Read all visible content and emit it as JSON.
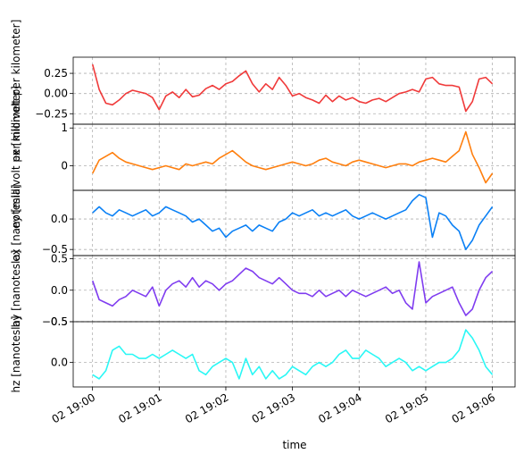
{
  "chart_data": {
    "type": "line",
    "xlabel": "time",
    "x_tick_labels": [
      "02 19:00",
      "02 19:01",
      "02 19:02",
      "02 19:03",
      "02 19:04",
      "02 19:05",
      "02 19:06"
    ],
    "x_range_minutes": [
      -0.29,
      6.34
    ],
    "grid": true,
    "panels": [
      {
        "ylabel": "ex [millivolt per kilometer]",
        "color": "#f03a3a",
        "ylim": [
          -0.38,
          0.45
        ],
        "yticks": [
          -0.25,
          0.0,
          0.25
        ],
        "ytick_labels": [
          "−0.25",
          "0.00",
          "0.25"
        ],
        "x": [
          0.0,
          0.1,
          0.2,
          0.3,
          0.4,
          0.5,
          0.6,
          0.7,
          0.8,
          0.9,
          1.0,
          1.1,
          1.2,
          1.3,
          1.4,
          1.5,
          1.6,
          1.7,
          1.8,
          1.9,
          2.0,
          2.1,
          2.2,
          2.3,
          2.4,
          2.5,
          2.6,
          2.7,
          2.8,
          2.9,
          3.0,
          3.1,
          3.2,
          3.3,
          3.4,
          3.5,
          3.6,
          3.7,
          3.8,
          3.9,
          4.0,
          4.1,
          4.2,
          4.3,
          4.4,
          4.5,
          4.6,
          4.7,
          4.8,
          4.9,
          5.0,
          5.1,
          5.2,
          5.3,
          5.4,
          5.5,
          5.6,
          5.7,
          5.8,
          5.9,
          6.0
        ],
        "values": [
          0.36,
          0.05,
          -0.12,
          -0.14,
          -0.08,
          0.0,
          0.04,
          0.02,
          0.0,
          -0.05,
          -0.2,
          -0.03,
          0.02,
          -0.05,
          0.05,
          -0.04,
          -0.02,
          0.06,
          0.1,
          0.05,
          0.12,
          0.15,
          0.22,
          0.28,
          0.12,
          0.02,
          0.12,
          0.05,
          0.2,
          0.1,
          -0.03,
          0.0,
          -0.05,
          -0.08,
          -0.12,
          -0.02,
          -0.1,
          -0.03,
          -0.08,
          -0.05,
          -0.1,
          -0.12,
          -0.08,
          -0.06,
          -0.1,
          -0.05,
          0.0,
          0.02,
          0.05,
          0.02,
          0.18,
          0.2,
          0.12,
          0.1,
          0.1,
          0.08,
          -0.22,
          -0.1,
          0.18,
          0.2,
          0.12
        ]
      },
      {
        "ylabel": "ey [millivolt per kilometer]",
        "color": "#ff7f0e",
        "ylim": [
          -0.65,
          1.1
        ],
        "yticks": [
          0,
          1
        ],
        "ytick_labels": [
          "0",
          "1"
        ],
        "x": [
          0.0,
          0.1,
          0.2,
          0.3,
          0.4,
          0.5,
          0.6,
          0.7,
          0.8,
          0.9,
          1.0,
          1.1,
          1.2,
          1.3,
          1.4,
          1.5,
          1.6,
          1.7,
          1.8,
          1.9,
          2.0,
          2.1,
          2.2,
          2.3,
          2.4,
          2.5,
          2.6,
          2.7,
          2.8,
          2.9,
          3.0,
          3.1,
          3.2,
          3.3,
          3.4,
          3.5,
          3.6,
          3.7,
          3.8,
          3.9,
          4.0,
          4.1,
          4.2,
          4.3,
          4.4,
          4.5,
          4.6,
          4.7,
          4.8,
          4.9,
          5.0,
          5.1,
          5.2,
          5.3,
          5.4,
          5.5,
          5.6,
          5.7,
          5.8,
          5.9,
          6.0
        ],
        "values": [
          -0.2,
          0.15,
          0.25,
          0.35,
          0.2,
          0.1,
          0.05,
          0.0,
          -0.05,
          -0.1,
          -0.05,
          0.0,
          -0.05,
          -0.1,
          0.05,
          0.0,
          0.05,
          0.1,
          0.05,
          0.2,
          0.3,
          0.4,
          0.25,
          0.1,
          0.0,
          -0.05,
          -0.1,
          -0.05,
          0.0,
          0.05,
          0.1,
          0.05,
          0.0,
          0.05,
          0.15,
          0.2,
          0.1,
          0.05,
          0.0,
          0.1,
          0.15,
          0.1,
          0.05,
          0.0,
          -0.05,
          0.0,
          0.05,
          0.05,
          0.0,
          0.1,
          0.15,
          0.2,
          0.15,
          0.1,
          0.25,
          0.4,
          0.9,
          0.3,
          -0.05,
          -0.45,
          -0.2
        ]
      },
      {
        "ylabel": "ex [nanotesla]",
        "color": "#0a80f5",
        "ylim": [
          -0.6,
          0.47
        ],
        "yticks": [
          -0.5,
          0.0
        ],
        "ytick_labels": [
          "−0.5",
          "0.0"
        ],
        "x": [
          0.0,
          0.1,
          0.2,
          0.3,
          0.4,
          0.5,
          0.6,
          0.7,
          0.8,
          0.9,
          1.0,
          1.1,
          1.2,
          1.3,
          1.4,
          1.5,
          1.6,
          1.7,
          1.8,
          1.9,
          2.0,
          2.1,
          2.2,
          2.3,
          2.4,
          2.5,
          2.6,
          2.7,
          2.8,
          2.9,
          3.0,
          3.1,
          3.2,
          3.3,
          3.4,
          3.5,
          3.6,
          3.7,
          3.8,
          3.9,
          4.0,
          4.1,
          4.2,
          4.3,
          4.4,
          4.5,
          4.6,
          4.7,
          4.8,
          4.9,
          5.0,
          5.1,
          5.2,
          5.3,
          5.4,
          5.5,
          5.6,
          5.7,
          5.8,
          5.9,
          6.0
        ],
        "values": [
          0.1,
          0.2,
          0.1,
          0.05,
          0.15,
          0.1,
          0.05,
          0.1,
          0.15,
          0.05,
          0.1,
          0.2,
          0.15,
          0.1,
          0.05,
          -0.05,
          0.0,
          -0.1,
          -0.2,
          -0.15,
          -0.3,
          -0.2,
          -0.15,
          -0.1,
          -0.2,
          -0.1,
          -0.15,
          -0.2,
          -0.05,
          0.0,
          0.1,
          0.05,
          0.1,
          0.15,
          0.05,
          0.1,
          0.05,
          0.1,
          0.15,
          0.05,
          0.0,
          0.05,
          0.1,
          0.05,
          0.0,
          0.05,
          0.1,
          0.15,
          0.3,
          0.4,
          0.35,
          -0.3,
          0.1,
          0.05,
          -0.1,
          -0.2,
          -0.5,
          -0.35,
          -0.1,
          0.05,
          0.2
        ]
      },
      {
        "ylabel": "hy [nanotesla]",
        "color": "#7f3cf0",
        "ylim": [
          -0.5,
          0.55
        ],
        "yticks": [
          -0.5,
          0.0,
          0.5
        ],
        "ytick_labels": [
          "−0.5",
          "0.0",
          "0.5"
        ],
        "x": [
          0.0,
          0.1,
          0.2,
          0.3,
          0.4,
          0.5,
          0.6,
          0.7,
          0.8,
          0.9,
          1.0,
          1.1,
          1.2,
          1.3,
          1.4,
          1.5,
          1.6,
          1.7,
          1.8,
          1.9,
          2.0,
          2.1,
          2.2,
          2.3,
          2.4,
          2.5,
          2.6,
          2.7,
          2.8,
          2.9,
          3.0,
          3.1,
          3.2,
          3.3,
          3.4,
          3.5,
          3.6,
          3.7,
          3.8,
          3.9,
          4.0,
          4.1,
          4.2,
          4.3,
          4.4,
          4.5,
          4.6,
          4.7,
          4.8,
          4.9,
          5.0,
          5.1,
          5.2,
          5.3,
          5.4,
          5.5,
          5.6,
          5.7,
          5.8,
          5.9,
          6.0
        ],
        "values": [
          0.15,
          -0.15,
          -0.2,
          -0.25,
          -0.15,
          -0.1,
          0.0,
          -0.05,
          -0.1,
          0.05,
          -0.25,
          0.0,
          0.1,
          0.15,
          0.05,
          0.2,
          0.05,
          0.15,
          0.1,
          0.0,
          0.1,
          0.15,
          0.25,
          0.35,
          0.3,
          0.2,
          0.15,
          0.1,
          0.2,
          0.1,
          0.0,
          -0.05,
          -0.05,
          -0.1,
          0.0,
          -0.1,
          -0.05,
          0.0,
          -0.1,
          0.0,
          -0.05,
          -0.1,
          -0.05,
          0.0,
          0.05,
          -0.05,
          0.0,
          -0.2,
          -0.3,
          0.45,
          -0.2,
          -0.1,
          -0.05,
          0.0,
          0.05,
          -0.2,
          -0.4,
          -0.3,
          0.0,
          0.2,
          0.3
        ]
      },
      {
        "ylabel": "hz [nanotesla]",
        "color": "#2af7f5",
        "ylim": [
          -0.3,
          0.5
        ],
        "yticks": [
          0.0,
          0.5
        ],
        "ytick_labels": [
          "0.0",
          "0.5"
        ],
        "x": [
          0.0,
          0.1,
          0.2,
          0.3,
          0.4,
          0.5,
          0.6,
          0.7,
          0.8,
          0.9,
          1.0,
          1.1,
          1.2,
          1.3,
          1.4,
          1.5,
          1.6,
          1.7,
          1.8,
          1.9,
          2.0,
          2.1,
          2.2,
          2.3,
          2.4,
          2.5,
          2.6,
          2.7,
          2.8,
          2.9,
          3.0,
          3.1,
          3.2,
          3.3,
          3.4,
          3.5,
          3.6,
          3.7,
          3.8,
          3.9,
          4.0,
          4.1,
          4.2,
          4.3,
          4.4,
          4.5,
          4.6,
          4.7,
          4.8,
          4.9,
          5.0,
          5.1,
          5.2,
          5.3,
          5.4,
          5.5,
          5.6,
          5.7,
          5.8,
          5.9,
          6.0
        ],
        "values": [
          -0.15,
          -0.2,
          -0.1,
          0.15,
          0.2,
          0.1,
          0.1,
          0.05,
          0.05,
          0.1,
          0.05,
          0.1,
          0.15,
          0.1,
          0.05,
          0.1,
          -0.1,
          -0.15,
          -0.05,
          0.0,
          0.05,
          0.0,
          -0.2,
          0.05,
          -0.15,
          -0.05,
          -0.2,
          -0.1,
          -0.2,
          -0.15,
          -0.05,
          -0.1,
          -0.15,
          -0.05,
          0.0,
          -0.05,
          0.0,
          0.1,
          0.15,
          0.05,
          0.05,
          0.15,
          0.1,
          0.05,
          -0.05,
          0.0,
          0.05,
          0.0,
          -0.1,
          -0.05,
          -0.1,
          -0.05,
          0.0,
          0.0,
          0.05,
          0.15,
          0.4,
          0.3,
          0.15,
          -0.05,
          -0.15
        ]
      }
    ]
  }
}
